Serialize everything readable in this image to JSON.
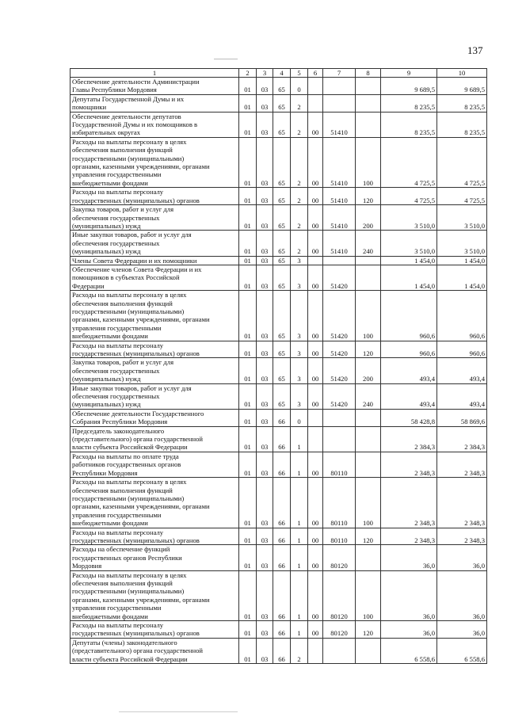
{
  "page_number": "137",
  "table": {
    "headers": [
      "1",
      "2",
      "3",
      "4",
      "5",
      "6",
      "7",
      "8",
      "9",
      "10"
    ],
    "rows": [
      {
        "name": "Обеспечение деятельности Администрации\nГлавы Республики Мордовия",
        "c2": "01",
        "c3": "03",
        "c4": "65",
        "c5": "0",
        "c6": "",
        "c7": "",
        "c8": "",
        "c9": "9 689,5",
        "c10": "9 689,5"
      },
      {
        "name": "Депутаты Государственной Думы и их\nпомощники",
        "c2": "01",
        "c3": "03",
        "c4": "65",
        "c5": "2",
        "c6": "",
        "c7": "",
        "c8": "",
        "c9": "8 235,5",
        "c10": "8 235,5"
      },
      {
        "name": "Обеспечение деятельности депутатов\nГосударственной Думы и их помощников в\nизбирательных округах",
        "c2": "01",
        "c3": "03",
        "c4": "65",
        "c5": "2",
        "c6": "00",
        "c7": "51410",
        "c8": "",
        "c9": "8 235,5",
        "c10": "8 235,5"
      },
      {
        "name": "Расходы на выплаты персоналу в целях\nобеспечения выполнения функций\nгосударственными (муниципальными)\nорганами, казенными учреждениями, органами\nуправления государственными\nвнебюджетными фондами",
        "c2": "01",
        "c3": "03",
        "c4": "65",
        "c5": "2",
        "c6": "00",
        "c7": "51410",
        "c8": "100",
        "c9": "4 725,5",
        "c10": "4 725,5"
      },
      {
        "name": "Расходы на выплаты персоналу\nгосударственных (муниципальных) органов",
        "c2": "01",
        "c3": "03",
        "c4": "65",
        "c5": "2",
        "c6": "00",
        "c7": "51410",
        "c8": "120",
        "c9": "4 725,5",
        "c10": "4 725,5"
      },
      {
        "name": "Закупка товаров, работ и услуг для\nобеспечения государственных\n(муниципальных) нужд",
        "c2": "01",
        "c3": "03",
        "c4": "65",
        "c5": "2",
        "c6": "00",
        "c7": "51410",
        "c8": "200",
        "c9": "3 510,0",
        "c10": "3 510,0"
      },
      {
        "name": "Иные закупки товаров, работ и услуг для\nобеспечения государственных\n(муниципальных) нужд",
        "c2": "01",
        "c3": "03",
        "c4": "65",
        "c5": "2",
        "c6": "00",
        "c7": "51410",
        "c8": "240",
        "c9": "3 510,0",
        "c10": "3 510,0"
      },
      {
        "name": "Члены Совета Федерации и их помощники",
        "c2": "01",
        "c3": "03",
        "c4": "65",
        "c5": "3",
        "c6": "",
        "c7": "",
        "c8": "",
        "c9": "1 454,0",
        "c10": "1 454,0"
      },
      {
        "name": "Обеспечение членов Совета Федерации и их\nпомощников в субъектах Российской\nФедерации",
        "c2": "01",
        "c3": "03",
        "c4": "65",
        "c5": "3",
        "c6": "00",
        "c7": "51420",
        "c8": "",
        "c9": "1 454,0",
        "c10": "1 454,0"
      },
      {
        "name": "Расходы на выплаты персоналу в целях\nобеспечения выполнения функций\nгосударственными (муниципальными)\nорганами, казенными учреждениями, органами\nуправления государственными\nвнебюджетными фондами",
        "c2": "01",
        "c3": "03",
        "c4": "65",
        "c5": "3",
        "c6": "00",
        "c7": "51420",
        "c8": "100",
        "c9": "960,6",
        "c10": "960,6"
      },
      {
        "name": "Расходы на выплаты персоналу\nгосударственных (муниципальных) органов",
        "c2": "01",
        "c3": "03",
        "c4": "65",
        "c5": "3",
        "c6": "00",
        "c7": "51420",
        "c8": "120",
        "c9": "960,6",
        "c10": "960,6"
      },
      {
        "name": "Закупка товаров, работ и услуг для\nобеспечения государственных\n(муниципальных) нужд",
        "c2": "01",
        "c3": "03",
        "c4": "65",
        "c5": "3",
        "c6": "00",
        "c7": "51420",
        "c8": "200",
        "c9": "493,4",
        "c10": "493,4"
      },
      {
        "name": "Иные закупки товаров, работ и услуг для\nобеспечения государственных\n(муниципальных) нужд",
        "c2": "01",
        "c3": "03",
        "c4": "65",
        "c5": "3",
        "c6": "00",
        "c7": "51420",
        "c8": "240",
        "c9": "493,4",
        "c10": "493,4"
      },
      {
        "name": "Обеспечение деятельности Государственного\nСобрания Республики Мордовия",
        "c2": "01",
        "c3": "03",
        "c4": "66",
        "c5": "0",
        "c6": "",
        "c7": "",
        "c8": "",
        "c9": "58 428,8",
        "c10": "58 869,6"
      },
      {
        "name": "Председатель законодательного\n(представительного) органа государственной\nвласти субъекта Российской Федерации",
        "c2": "01",
        "c3": "03",
        "c4": "66",
        "c5": "1",
        "c6": "",
        "c7": "",
        "c8": "",
        "c9": "2 384,3",
        "c10": "2 384,3"
      },
      {
        "name": "Расходы на выплаты по оплате труда\nработников государственных органов\nРеспублики Мордовия",
        "c2": "01",
        "c3": "03",
        "c4": "66",
        "c5": "1",
        "c6": "00",
        "c7": "80110",
        "c8": "",
        "c9": "2 348,3",
        "c10": "2 348,3"
      },
      {
        "name": "Расходы на выплаты персоналу в целях\nобеспечения выполнения функций\nгосударственными (муниципальными)\nорганами, казенными учреждениями, органами\nуправления государственными\nвнебюджетными фондами",
        "c2": "01",
        "c3": "03",
        "c4": "66",
        "c5": "1",
        "c6": "00",
        "c7": "80110",
        "c8": "100",
        "c9": "2 348,3",
        "c10": "2 348,3"
      },
      {
        "name": "Расходы на выплаты персоналу\nгосударственных (муниципальных) органов",
        "c2": "01",
        "c3": "03",
        "c4": "66",
        "c5": "1",
        "c6": "00",
        "c7": "80110",
        "c8": "120",
        "c9": "2 348,3",
        "c10": "2 348,3"
      },
      {
        "name": "Расходы на обеспечение функций\nгосударственных органов Республики\nМордовия",
        "c2": "01",
        "c3": "03",
        "c4": "66",
        "c5": "1",
        "c6": "00",
        "c7": "80120",
        "c8": "",
        "c9": "36,0",
        "c10": "36,0"
      },
      {
        "name": "Расходы на выплаты персоналу в целях\nобеспечения выполнения функций\nгосударственными (муниципальными)\nорганами, казенными учреждениями, органами\nуправления государственными\nвнебюджетными фондами",
        "c2": "01",
        "c3": "03",
        "c4": "66",
        "c5": "1",
        "c6": "00",
        "c7": "80120",
        "c8": "100",
        "c9": "36,0",
        "c10": "36,0"
      },
      {
        "name": "Расходы на выплаты персоналу\nгосударственных (муниципальных) органов",
        "c2": "01",
        "c3": "03",
        "c4": "66",
        "c5": "1",
        "c6": "00",
        "c7": "80120",
        "c8": "120",
        "c9": "36,0",
        "c10": "36,0"
      },
      {
        "name": "Депутаты (члены) законодательного\n(представительного) органа государственной\nвласти субъекта Российской Федерации",
        "c2": "01",
        "c3": "03",
        "c4": "66",
        "c5": "2",
        "c6": "",
        "c7": "",
        "c8": "",
        "c9": "6 558,6",
        "c10": "6 558,6"
      }
    ]
  }
}
